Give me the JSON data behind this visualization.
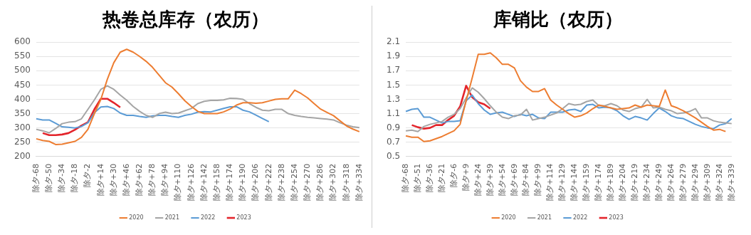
{
  "chart_data": [
    {
      "type": "line",
      "title": "热卷总库存（农历）",
      "categories": [
        "除夕-68",
        null,
        "除夕-50",
        null,
        "除夕-34",
        null,
        "除夕-18",
        null,
        "除夕-2",
        null,
        "除夕+14",
        null,
        "除夕+30",
        null,
        "除夕+46",
        null,
        "除夕+62",
        null,
        "除夕+78",
        null,
        "除夕+94",
        null,
        "除夕+110",
        null,
        "除夕+126",
        null,
        "除夕+142",
        null,
        "除夕+158",
        null,
        "除夕+174",
        null,
        "除夕+190",
        null,
        "除夕+206",
        null,
        "除夕+222",
        null,
        "除夕+238",
        null,
        "除夕+254",
        null,
        "除夕+270",
        null,
        "除夕+286",
        null,
        "除夕+302",
        null,
        "除夕+318",
        null,
        "除夕+334"
      ],
      "series": [
        {
          "name": "2020",
          "color": "#ed7d31",
          "values": [
            262,
            256,
            253,
            242,
            243,
            248,
            253,
            267,
            295,
            350,
            400,
            470,
            528,
            565,
            575,
            565,
            550,
            533,
            512,
            485,
            458,
            443,
            420,
            395,
            375,
            358,
            350,
            350,
            350,
            356,
            366,
            380,
            388,
            388,
            386,
            388,
            394,
            400,
            402,
            402,
            432,
            420,
            405,
            385,
            366,
            354,
            343,
            325,
            307,
            296,
            287
          ]
        },
        {
          "name": "2021",
          "color": "#a5a5a5",
          "values": [
            295,
            290,
            283,
            298,
            315,
            320,
            322,
            332,
            365,
            398,
            435,
            447,
            435,
            415,
            397,
            375,
            358,
            344,
            337,
            350,
            355,
            350,
            352,
            360,
            368,
            385,
            393,
            396,
            396,
            398,
            404,
            403,
            400,
            385,
            372,
            362,
            360,
            365,
            365,
            350,
            344,
            340,
            337,
            335,
            333,
            331,
            328,
            318,
            310,
            304,
            301
          ]
        },
        {
          "name": "2022",
          "color": "#5b9bd5",
          "values": [
            332,
            328,
            328,
            316,
            304,
            302,
            300,
            305,
            318,
            353,
            373,
            375,
            368,
            352,
            344,
            344,
            340,
            337,
            342,
            344,
            344,
            340,
            337,
            344,
            348,
            355,
            357,
            356,
            362,
            368,
            374,
            374,
            362,
            356,
            345,
            333,
            322,
            null,
            null,
            null,
            null,
            null,
            null,
            null,
            null,
            null,
            null,
            null,
            null,
            null,
            null
          ]
        },
        {
          "name": "2023",
          "color": "#e3242b",
          "values": [
            null,
            282,
            275,
            275,
            277,
            282,
            294,
            308,
            320,
            365,
            402,
            402,
            388,
            372,
            null,
            null,
            null,
            null,
            null,
            null,
            null,
            null,
            null,
            null,
            null,
            null,
            null,
            null,
            null,
            null,
            null,
            null,
            null,
            null,
            null,
            null,
            null,
            null,
            null,
            null,
            null,
            null,
            null,
            null,
            null,
            null,
            null,
            null,
            null,
            null,
            null
          ]
        }
      ],
      "ylim": [
        200,
        600
      ],
      "yticks": [
        200,
        250,
        300,
        350,
        400,
        450,
        500,
        550,
        600
      ],
      "grid": "y",
      "legend": "bottom",
      "marker": "none"
    },
    {
      "type": "line",
      "title": "库销比（农历）",
      "categories": [
        "除夕-68",
        null,
        "除夕-51",
        null,
        "除夕-36",
        null,
        "除夕-21",
        null,
        "除夕-6",
        null,
        "除夕+9",
        null,
        "除夕+24",
        null,
        "除夕+39",
        null,
        "除夕+54",
        null,
        "除夕+69",
        null,
        "除夕+84",
        null,
        "除夕+99",
        null,
        "除夕+114",
        null,
        "除夕+129",
        null,
        "除夕+144",
        null,
        "除夕+159",
        null,
        "除夕+174",
        null,
        "除夕+189",
        null,
        "除夕+204",
        null,
        "除夕+219",
        null,
        "除夕+234",
        null,
        "除夕+249",
        null,
        "除夕+264",
        null,
        "除夕+279",
        null,
        "除夕+294",
        null,
        "除夕+309",
        null,
        "除夕+324",
        null,
        "除夕+339"
      ],
      "series": [
        {
          "name": "2020",
          "color": "#ed7d31",
          "values": [
            0.79,
            0.77,
            0.77,
            0.71,
            0.72,
            0.75,
            0.78,
            0.82,
            0.86,
            0.95,
            1.28,
            1.6,
            1.93,
            1.93,
            1.95,
            1.88,
            1.79,
            1.79,
            1.74,
            1.56,
            1.47,
            1.41,
            1.41,
            1.45,
            1.29,
            1.22,
            1.16,
            1.1,
            1.05,
            1.07,
            1.11,
            1.17,
            1.22,
            1.2,
            1.18,
            1.16,
            1.17,
            1.18,
            1.22,
            1.19,
            1.22,
            1.21,
            1.2,
            1.43,
            1.21,
            1.18,
            1.14,
            1.09,
            1.04,
            0.98,
            0.92,
            0.87,
            0.88,
            0.85,
            null
          ]
        },
        {
          "name": "2021",
          "color": "#a5a5a5",
          "values": [
            0.86,
            0.87,
            0.85,
            0.92,
            0.95,
            0.97,
            0.99,
            1.05,
            1.09,
            1.17,
            1.32,
            1.46,
            1.4,
            1.31,
            1.21,
            1.12,
            1.05,
            1.03,
            1.07,
            1.08,
            1.16,
            1.01,
            1.03,
            1.05,
            1.08,
            1.11,
            1.17,
            1.24,
            1.22,
            1.23,
            1.27,
            1.29,
            1.21,
            1.21,
            1.24,
            1.21,
            1.15,
            1.13,
            1.17,
            1.19,
            1.3,
            1.18,
            1.19,
            1.16,
            1.14,
            1.1,
            1.11,
            1.13,
            1.17,
            1.04,
            1.04,
            1.0,
            0.98,
            0.97,
            0.96
          ]
        },
        {
          "name": "2022",
          "color": "#5b9bd5",
          "values": [
            1.13,
            1.16,
            1.17,
            1.05,
            1.05,
            1.01,
            0.97,
            0.99,
            0.99,
            1.0,
            1.28,
            1.36,
            1.24,
            1.15,
            1.09,
            1.11,
            1.12,
            1.09,
            1.06,
            1.09,
            1.07,
            1.09,
            1.04,
            1.03,
            1.12,
            1.12,
            1.12,
            1.15,
            1.16,
            1.13,
            1.22,
            1.23,
            1.18,
            1.19,
            1.18,
            1.14,
            1.07,
            1.02,
            1.06,
            1.04,
            1.01,
            1.1,
            1.18,
            1.13,
            1.07,
            1.04,
            1.03,
            0.99,
            0.95,
            0.92,
            0.9,
            0.89,
            0.94,
            0.96,
            1.03
          ]
        },
        {
          "name": "2023",
          "color": "#e3242b",
          "values": [
            null,
            0.94,
            0.91,
            0.89,
            0.9,
            0.94,
            0.94,
            1.01,
            1.07,
            1.2,
            1.49,
            1.33,
            1.26,
            1.23,
            1.17,
            null,
            null,
            null,
            null,
            null,
            null,
            null,
            null,
            null,
            null,
            null,
            null,
            null,
            null,
            null,
            null,
            null,
            null,
            null,
            null,
            null,
            null,
            null,
            null,
            null,
            null,
            null,
            null,
            null,
            null,
            null,
            null,
            null,
            null,
            null,
            null,
            null,
            null,
            null,
            null
          ]
        }
      ],
      "ylim": [
        0.5,
        2.1
      ],
      "yticks": [
        0.5,
        0.7,
        0.9,
        1.1,
        1.3,
        1.5,
        1.7,
        1.9,
        2.1
      ],
      "grid": "y",
      "legend": "bottom",
      "marker": "none"
    }
  ]
}
